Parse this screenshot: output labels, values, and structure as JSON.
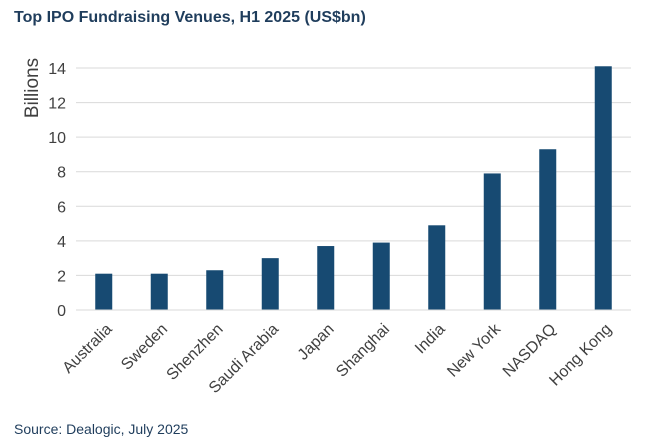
{
  "title": "Top IPO Fundraising Venues, H1 2025 (US$bn)",
  "source": "Source: Dealogic, July 2025",
  "colors": {
    "bar": "#174a72",
    "title": "#1f3d5c",
    "grid": "#d9d9d9",
    "axis_text": "#404040"
  },
  "chart_data": {
    "type": "bar",
    "title": "Top IPO Fundraising Venues, H1 2025 (US$bn)",
    "xlabel": "",
    "ylabel": "Billions",
    "ylim": [
      0,
      14
    ],
    "yticks": [
      0,
      2,
      4,
      6,
      8,
      10,
      12,
      14
    ],
    "grid": true,
    "legend": "none",
    "categories": [
      "Australia",
      "Sweden",
      "Shenzhen",
      "Saudi Arabia",
      "Japan",
      "Shanghai",
      "India",
      "New York",
      "NASDAQ",
      "Hong Kong"
    ],
    "values": [
      2.1,
      2.1,
      2.3,
      3.0,
      3.7,
      3.9,
      4.9,
      7.9,
      9.3,
      14.1
    ]
  }
}
